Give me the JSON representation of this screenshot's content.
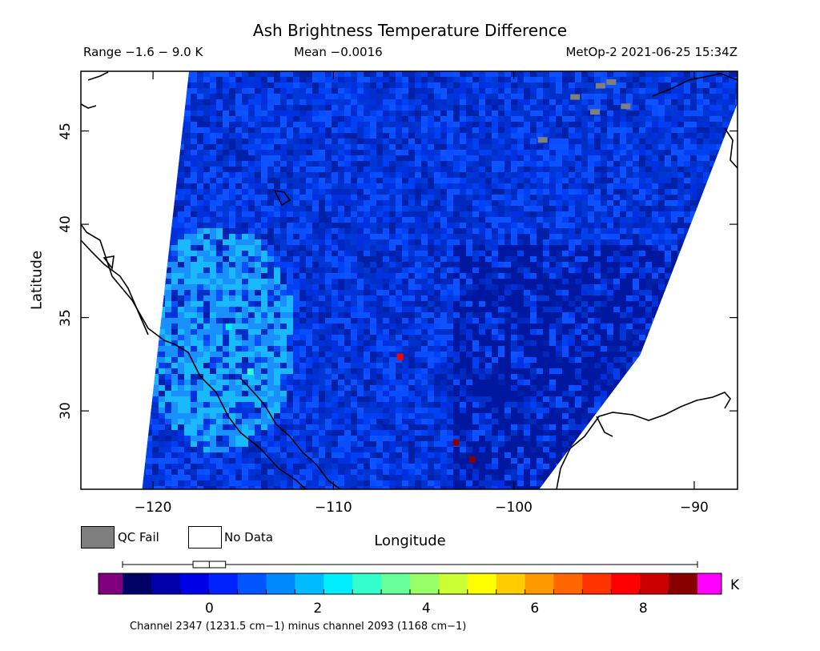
{
  "header": {
    "title": "Ash Brightness Temperature Difference",
    "range": "Range −1.6 − 9.0 K",
    "mean": "Mean −0.0016",
    "satellite": "MetOp-2 2021-06-25 15:34Z"
  },
  "legend": {
    "qc_fail": "QC Fail",
    "no_data": "No Data",
    "qc_fail_color": "#7f7f7f",
    "no_data_color": "#ffffff"
  },
  "colorbar": {
    "unit": "K",
    "ticks": [
      "0",
      "2",
      "4",
      "6",
      "8"
    ],
    "tick_values": [
      0,
      2,
      4,
      6,
      8
    ],
    "min": -1.6,
    "max": 9.0,
    "under_color": "#800080",
    "over_color": "#ff00ff",
    "colors": [
      "#000066",
      "#0000aa",
      "#0000e6",
      "#0022ff",
      "#0055ff",
      "#0088ff",
      "#00bbff",
      "#00eeff",
      "#33ffcc",
      "#66ff99",
      "#99ff66",
      "#ccff33",
      "#ffff00",
      "#ffcc00",
      "#ff9900",
      "#ff6600",
      "#ff3300",
      "#ff0000",
      "#cc0000",
      "#880000"
    ],
    "boxplot": {
      "min": -1.6,
      "q1": -0.3,
      "median": 0.0,
      "q3": 0.3,
      "max": 9.0
    }
  },
  "footer": "Channel 2347 (1231.5 cm−1) minus channel 2093 (1168 cm−1)",
  "chart_data": {
    "type": "heatmap",
    "title": "Ash Brightness Temperature Difference",
    "xlabel": "Longitude",
    "ylabel": "Latitude",
    "xlim": [
      -124,
      -87.6
    ],
    "ylim": [
      25.8,
      48.2
    ],
    "x_ticks": [
      -120,
      -110,
      -100,
      -90
    ],
    "x_tick_labels": [
      "−120",
      "−110",
      "−100",
      "−90"
    ],
    "y_ticks": [
      30,
      35,
      40,
      45
    ],
    "y_tick_labels": [
      "30",
      "35",
      "40",
      "45"
    ],
    "value_range": [
      -1.6,
      9.0
    ],
    "mean": -0.0016,
    "swath": {
      "left_edge": [
        [
          -120.6,
          25.8
        ],
        [
          -118.0,
          48.2
        ]
      ],
      "right_edge": [
        [
          -98.6,
          25.8
        ],
        [
          -93.0,
          33.0
        ],
        [
          -87.6,
          46.5
        ]
      ]
    },
    "anomalies": [
      {
        "lon": -106.3,
        "lat": 32.9,
        "value": 7.5
      },
      {
        "lon": -103.2,
        "lat": 28.3,
        "value": 9.0
      },
      {
        "lon": -102.3,
        "lat": 27.4,
        "value": 9.0
      },
      {
        "lon": -114.6,
        "lat": 32.1,
        "value": 3.0
      },
      {
        "lon": -115.8,
        "lat": 34.5,
        "value": 2.5
      }
    ],
    "qc_fail_points": [
      {
        "lon": -94.6,
        "lat": 47.6
      },
      {
        "lon": -95.2,
        "lat": 47.4
      },
      {
        "lon": -96.6,
        "lat": 46.8
      },
      {
        "lon": -95.5,
        "lat": 46.0
      },
      {
        "lon": -93.8,
        "lat": 46.3
      },
      {
        "lon": -98.4,
        "lat": 44.5
      }
    ]
  }
}
